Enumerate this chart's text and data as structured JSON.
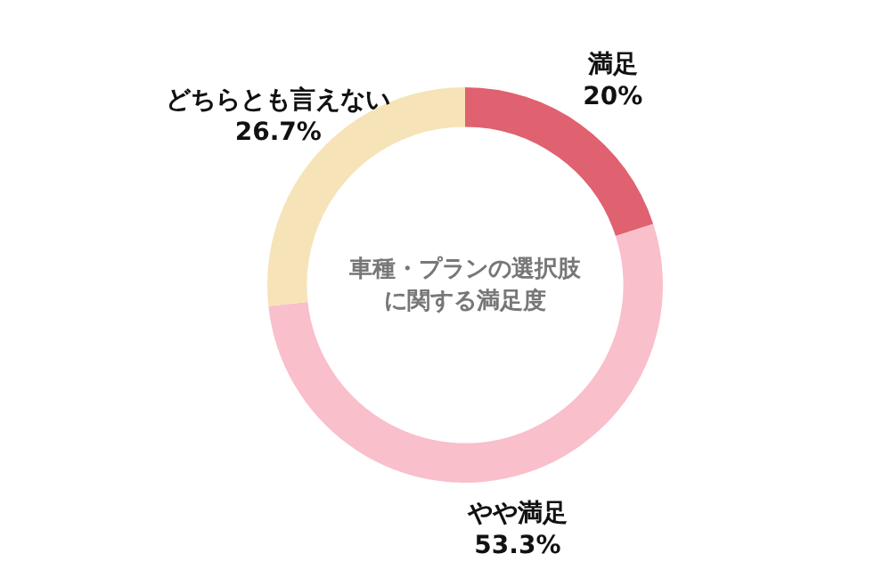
{
  "chart_data": {
    "type": "donut",
    "title": "車種・プランの選択肢に関する満足度",
    "categories": [
      "満足",
      "やや満足",
      "どちらとも言えない"
    ],
    "values": [
      20,
      53.3,
      26.7
    ],
    "value_labels": [
      "20%",
      "53.3%",
      "26.7%"
    ],
    "colors": [
      "#e0616f",
      "#f9bfcb",
      "#f6e3b8"
    ]
  }
}
